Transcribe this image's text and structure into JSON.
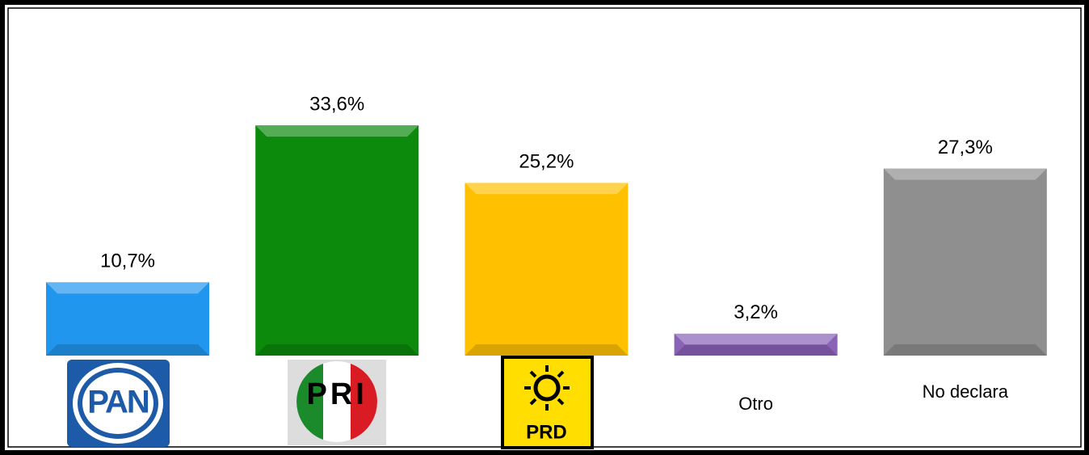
{
  "chart_data": {
    "type": "bar",
    "categories": [
      "PAN",
      "PRI",
      "PRD",
      "Otro",
      "No declara"
    ],
    "values": [
      10.7,
      33.6,
      25.2,
      3.2,
      27.3
    ],
    "value_labels": [
      "10,7%",
      "33,6%",
      "25,2%",
      "3,2%",
      "27,3%"
    ],
    "colors": [
      "#2196ee",
      "#0b8a0b",
      "#ffc000",
      "#8a62b8",
      "#8f8f8f"
    ]
  }
}
